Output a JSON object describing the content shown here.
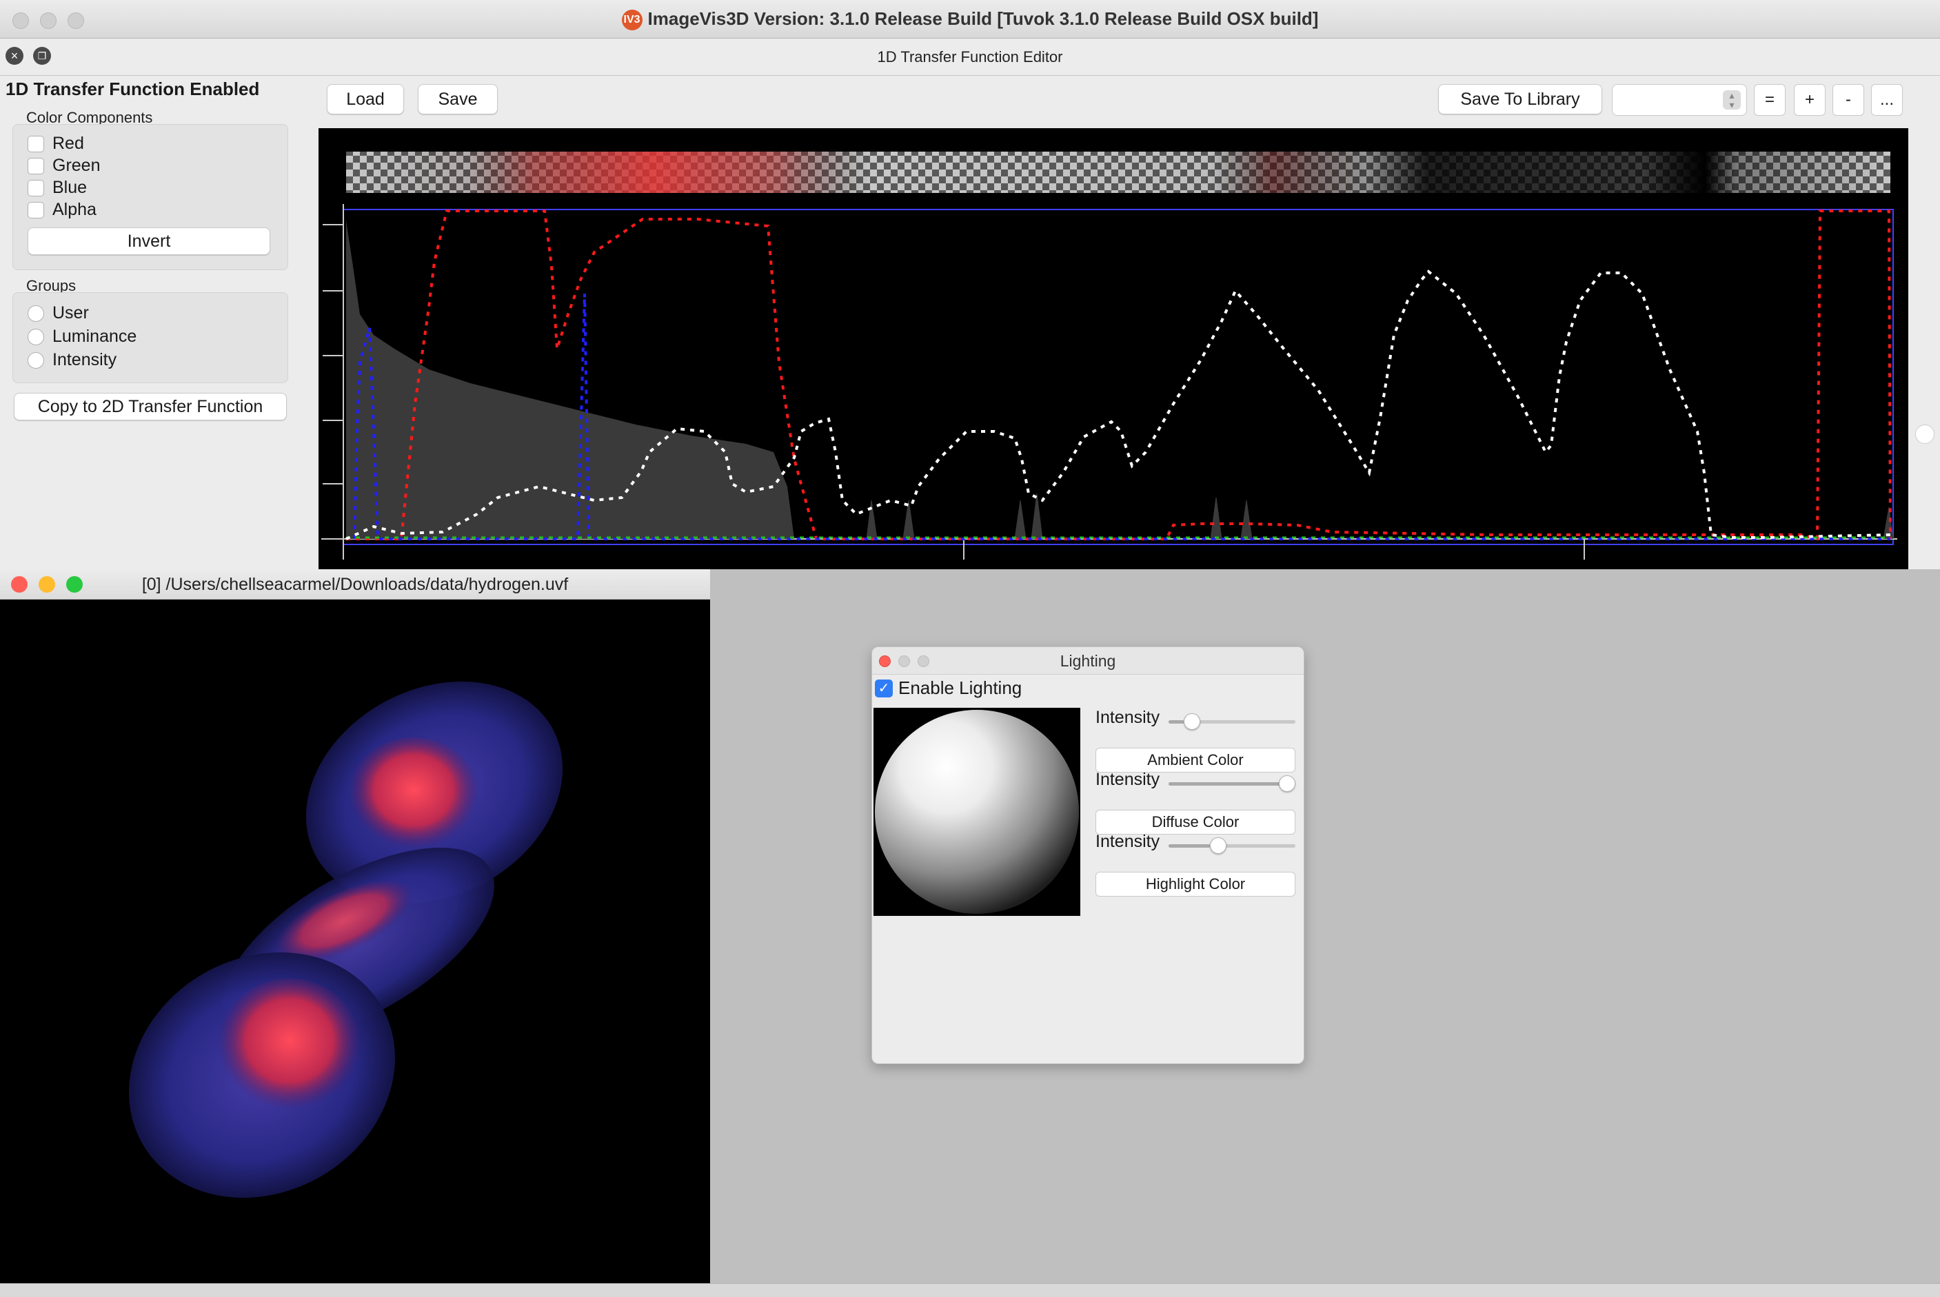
{
  "app": {
    "title": "ImageVis3D Version: 3.1.0 Release Build [Tuvok 3.1.0 Release Build OSX build]",
    "logo_text": "IV3"
  },
  "editor": {
    "title": "1D Transfer Function Editor",
    "enabled_label": "1D Transfer Function Enabled",
    "color_components": {
      "label": "Color Components",
      "items": [
        {
          "label": "Red",
          "checked": false
        },
        {
          "label": "Green",
          "checked": false
        },
        {
          "label": "Blue",
          "checked": false
        },
        {
          "label": "Alpha",
          "checked": false
        }
      ],
      "invert_label": "Invert"
    },
    "groups": {
      "label": "Groups",
      "items": [
        {
          "label": "User"
        },
        {
          "label": "Luminance"
        },
        {
          "label": "Intensity"
        }
      ]
    },
    "copy_label": "Copy to 2D Transfer Function",
    "toolbar": {
      "load_label": "Load",
      "save_label": "Save",
      "save_library_label": "Save To Library",
      "library_select_value": "",
      "equal_label": "=",
      "plus_label": "+",
      "minus_label": "-",
      "more_label": "..."
    }
  },
  "render_window": {
    "title": "[0] /Users/chellseacarmel/Downloads/data/hydrogen.uvf"
  },
  "lighting": {
    "title": "Lighting",
    "enable_label": "Enable Lighting",
    "enabled": true,
    "ambient": {
      "intensity_label": "Intensity",
      "level": 0.12,
      "button_label": "Ambient Color"
    },
    "diffuse": {
      "intensity_label": "Intensity",
      "level": 1.0,
      "button_label": "Diffuse Color"
    },
    "specular": {
      "intensity_label": "Intensity",
      "level": 0.28,
      "button_label": "Highlight Color"
    }
  },
  "colors": {
    "red_curve": "#ff1a1a",
    "blue_curve": "#2020ff",
    "alpha_curve": "#ffffff",
    "histogram": "#3a3a3a",
    "accent": "#2f7df6"
  }
}
